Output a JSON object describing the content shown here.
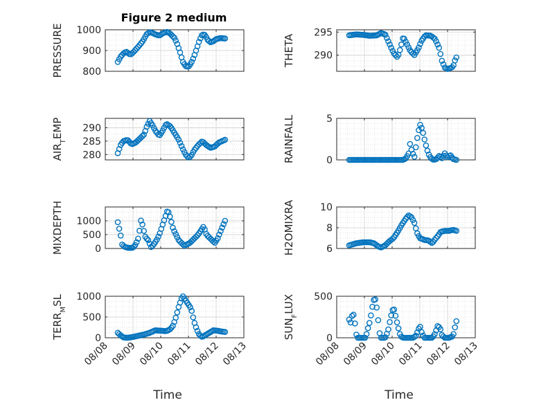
{
  "figure": {
    "title": "Figure 2 medium",
    "marker_color": "#0072BD",
    "grid_color": "#d9d9d9",
    "axis_color": "#262626"
  },
  "chart_data": [
    {
      "type": "scatter",
      "ylabel": "PRESSURE",
      "ylabel_parts": [
        [
          "PRESSURE",
          ""
        ]
      ],
      "xlabel": "",
      "ylim": [
        800,
        1000
      ],
      "yticks": [
        800,
        900,
        1000
      ],
      "xlim": [
        "08/08",
        "08/13"
      ],
      "xticks": [
        "08/08",
        "08/09",
        "08/10",
        "08/11",
        "08/12",
        "08/13"
      ],
      "show_xtick_labels": false,
      "x_start": "08/08",
      "x_end": "08/13",
      "x_first": 0.45,
      "x_last": 4.32,
      "anchors": [
        [
          0.45,
          845
        ],
        [
          0.55,
          870
        ],
        [
          0.65,
          885
        ],
        [
          0.75,
          895
        ],
        [
          0.9,
          880
        ],
        [
          1.0,
          890
        ],
        [
          1.1,
          905
        ],
        [
          1.2,
          920
        ],
        [
          1.35,
          945
        ],
        [
          1.5,
          980
        ],
        [
          1.6,
          988
        ],
        [
          1.7,
          985
        ],
        [
          1.8,
          978
        ],
        [
          1.95,
          972
        ],
        [
          2.1,
          985
        ],
        [
          2.25,
          990
        ],
        [
          2.35,
          980
        ],
        [
          2.5,
          960
        ],
        [
          2.6,
          930
        ],
        [
          2.7,
          890
        ],
        [
          2.8,
          845
        ],
        [
          2.9,
          825
        ],
        [
          3.0,
          822
        ],
        [
          3.1,
          840
        ],
        [
          3.2,
          870
        ],
        [
          3.3,
          910
        ],
        [
          3.4,
          950
        ],
        [
          3.5,
          978
        ],
        [
          3.6,
          975
        ],
        [
          3.7,
          950
        ],
        [
          3.8,
          940
        ],
        [
          3.9,
          945
        ],
        [
          4.0,
          955
        ],
        [
          4.15,
          960
        ],
        [
          4.32,
          958
        ]
      ]
    },
    {
      "type": "scatter",
      "ylabel": "THETA",
      "ylabel_parts": [
        [
          "THETA",
          ""
        ]
      ],
      "xlabel": "",
      "ylim": [
        286.5,
        295.5
      ],
      "yticks": [
        290,
        295
      ],
      "xlim": [
        "08/08",
        "08/13"
      ],
      "xticks": [
        "08/08",
        "08/09",
        "08/10",
        "08/11",
        "08/12",
        "08/13"
      ],
      "show_xtick_labels": false,
      "x_start": "08/08",
      "x_end": "08/13",
      "x_first": 0.45,
      "x_last": 4.32,
      "anchors": [
        [
          0.45,
          294.3
        ],
        [
          0.7,
          294.5
        ],
        [
          0.95,
          294.4
        ],
        [
          1.2,
          294.2
        ],
        [
          1.45,
          294.3
        ],
        [
          1.6,
          294.8
        ],
        [
          1.75,
          294.5
        ],
        [
          1.9,
          292.5
        ],
        [
          2.05,
          290.5
        ],
        [
          2.2,
          289.5
        ],
        [
          2.3,
          291.5
        ],
        [
          2.4,
          294.0
        ],
        [
          2.5,
          292.8
        ],
        [
          2.65,
          291.0
        ],
        [
          2.8,
          290.0
        ],
        [
          2.95,
          291.5
        ],
        [
          3.05,
          293.0
        ],
        [
          3.2,
          294.3
        ],
        [
          3.4,
          294.2
        ],
        [
          3.55,
          293.5
        ],
        [
          3.7,
          291.5
        ],
        [
          3.8,
          288.7
        ],
        [
          3.9,
          287.3
        ],
        [
          4.0,
          287.0
        ],
        [
          4.1,
          287.2
        ],
        [
          4.2,
          287.5
        ],
        [
          4.3,
          289.5
        ]
      ]
    },
    {
      "type": "scatter",
      "ylabel": "AIR_TEMP",
      "ylabel_parts": [
        [
          "AIR",
          ""
        ],
        [
          "T",
          "sub"
        ],
        [
          "EMP",
          ""
        ]
      ],
      "xlabel": "",
      "ylim": [
        278,
        293.5
      ],
      "yticks": [
        280,
        285,
        290
      ],
      "xlim": [
        "08/08",
        "08/13"
      ],
      "xticks": [
        "08/08",
        "08/09",
        "08/10",
        "08/11",
        "08/12",
        "08/13"
      ],
      "show_xtick_labels": false,
      "x_start": "08/08",
      "x_end": "08/13",
      "x_first": 0.45,
      "x_last": 4.32,
      "anchors": [
        [
          0.45,
          280.5
        ],
        [
          0.55,
          283.5
        ],
        [
          0.65,
          285.0
        ],
        [
          0.8,
          285.5
        ],
        [
          0.95,
          283.8
        ],
        [
          1.1,
          284.5
        ],
        [
          1.25,
          286.0
        ],
        [
          1.4,
          287.5
        ],
        [
          1.5,
          290.5
        ],
        [
          1.6,
          292.5
        ],
        [
          1.7,
          291.0
        ],
        [
          1.8,
          289.0
        ],
        [
          1.95,
          287.0
        ],
        [
          2.05,
          288.5
        ],
        [
          2.2,
          291.5
        ],
        [
          2.35,
          290.5
        ],
        [
          2.5,
          288.0
        ],
        [
          2.65,
          285.5
        ],
        [
          2.8,
          282.0
        ],
        [
          2.9,
          280.0
        ],
        [
          3.0,
          278.8
        ],
        [
          3.1,
          279.5
        ],
        [
          3.2,
          281.5
        ],
        [
          3.35,
          283.5
        ],
        [
          3.5,
          285.0
        ],
        [
          3.65,
          283.5
        ],
        [
          3.8,
          282.5
        ],
        [
          3.95,
          283.0
        ],
        [
          4.1,
          284.5
        ],
        [
          4.32,
          285.5
        ]
      ]
    },
    {
      "type": "scatter",
      "ylabel": "RAINFALL",
      "ylabel_parts": [
        [
          "RAINFALL",
          ""
        ]
      ],
      "xlabel": "",
      "ylim": [
        0,
        5
      ],
      "yticks": [
        0,
        5
      ],
      "xlim": [
        "08/08",
        "08/13"
      ],
      "xticks": [
        "08/08",
        "08/09",
        "08/10",
        "08/11",
        "08/12",
        "08/13"
      ],
      "show_xtick_labels": false,
      "x_start": "08/08",
      "x_end": "08/13",
      "x_first": 0.45,
      "x_last": 4.32,
      "anchors": [
        [
          0.45,
          0
        ],
        [
          1.0,
          0
        ],
        [
          1.5,
          0
        ],
        [
          2.0,
          0
        ],
        [
          2.3,
          0
        ],
        [
          2.4,
          0
        ],
        [
          2.5,
          0.2
        ],
        [
          2.6,
          0.8
        ],
        [
          2.65,
          2.0
        ],
        [
          2.7,
          1.2
        ],
        [
          2.8,
          0.3
        ],
        [
          2.9,
          2.5
        ],
        [
          3.0,
          4.3
        ],
        [
          3.05,
          4.0
        ],
        [
          3.1,
          3.5
        ],
        [
          3.2,
          2.0
        ],
        [
          3.3,
          0.8
        ],
        [
          3.4,
          0.2
        ],
        [
          3.5,
          0.0
        ],
        [
          3.6,
          0.1
        ],
        [
          3.7,
          0.5
        ],
        [
          3.8,
          0.2
        ],
        [
          3.9,
          0.8
        ],
        [
          4.0,
          0.3
        ],
        [
          4.1,
          0.6
        ],
        [
          4.2,
          0.1
        ],
        [
          4.32,
          0
        ]
      ]
    },
    {
      "type": "scatter",
      "ylabel": "MIXDEPTH",
      "ylabel_parts": [
        [
          "MIXDEPTH",
          ""
        ]
      ],
      "xlabel": "",
      "ylim": [
        0,
        1500
      ],
      "yticks": [
        0,
        500,
        1000
      ],
      "xlim": [
        "08/08",
        "08/13"
      ],
      "xticks": [
        "08/08",
        "08/09",
        "08/10",
        "08/11",
        "08/12",
        "08/13"
      ],
      "show_xtick_labels": false,
      "x_start": "08/08",
      "x_end": "08/13",
      "x_first": 0.45,
      "x_last": 4.32,
      "anchors": [
        [
          0.45,
          950
        ],
        [
          0.55,
          500
        ],
        [
          0.6,
          150
        ],
        [
          0.7,
          60
        ],
        [
          0.8,
          30
        ],
        [
          0.9,
          20
        ],
        [
          1.0,
          30
        ],
        [
          1.1,
          150
        ],
        [
          1.2,
          400
        ],
        [
          1.3,
          1100
        ],
        [
          1.35,
          800
        ],
        [
          1.45,
          400
        ],
        [
          1.55,
          300
        ],
        [
          1.65,
          50
        ],
        [
          1.75,
          150
        ],
        [
          1.85,
          300
        ],
        [
          1.95,
          500
        ],
        [
          2.05,
          800
        ],
        [
          2.15,
          1100
        ],
        [
          2.25,
          1400
        ],
        [
          2.35,
          1100
        ],
        [
          2.45,
          700
        ],
        [
          2.55,
          500
        ],
        [
          2.65,
          300
        ],
        [
          2.75,
          200
        ],
        [
          2.85,
          100
        ],
        [
          2.95,
          150
        ],
        [
          3.05,
          200
        ],
        [
          3.15,
          300
        ],
        [
          3.25,
          400
        ],
        [
          3.35,
          500
        ],
        [
          3.45,
          650
        ],
        [
          3.55,
          800
        ],
        [
          3.65,
          500
        ],
        [
          3.75,
          400
        ],
        [
          3.85,
          300
        ],
        [
          3.95,
          200
        ],
        [
          4.05,
          350
        ],
        [
          4.15,
          600
        ],
        [
          4.32,
          1000
        ]
      ]
    },
    {
      "type": "scatter",
      "ylabel": "H2OMIXRA",
      "ylabel_parts": [
        [
          "H2OMIXRA",
          ""
        ]
      ],
      "xlabel": "",
      "ylim": [
        6,
        10
      ],
      "yticks": [
        6,
        8,
        10
      ],
      "xlim": [
        "08/08",
        "08/13"
      ],
      "xticks": [
        "08/08",
        "08/09",
        "08/10",
        "08/11",
        "08/12",
        "08/13"
      ],
      "show_xtick_labels": false,
      "x_start": "08/08",
      "x_end": "08/13",
      "x_first": 0.45,
      "x_last": 4.32,
      "anchors": [
        [
          0.45,
          6.3
        ],
        [
          0.7,
          6.5
        ],
        [
          0.95,
          6.6
        ],
        [
          1.2,
          6.6
        ],
        [
          1.35,
          6.5
        ],
        [
          1.5,
          6.2
        ],
        [
          1.6,
          6.1
        ],
        [
          1.75,
          6.3
        ],
        [
          1.9,
          6.7
        ],
        [
          2.05,
          7.0
        ],
        [
          2.2,
          7.6
        ],
        [
          2.35,
          8.3
        ],
        [
          2.5,
          8.9
        ],
        [
          2.6,
          9.2
        ],
        [
          2.7,
          9.0
        ],
        [
          2.8,
          8.5
        ],
        [
          2.9,
          7.5
        ],
        [
          3.0,
          7.0
        ],
        [
          3.1,
          6.9
        ],
        [
          3.2,
          6.8
        ],
        [
          3.3,
          6.8
        ],
        [
          3.45,
          6.5
        ],
        [
          3.55,
          6.9
        ],
        [
          3.65,
          7.2
        ],
        [
          3.75,
          7.6
        ],
        [
          3.9,
          7.7
        ],
        [
          4.05,
          7.7
        ],
        [
          4.2,
          7.8
        ],
        [
          4.32,
          7.7
        ]
      ]
    },
    {
      "type": "scatter",
      "ylabel": "TERR_MSL",
      "ylabel_parts": [
        [
          "TERR",
          ""
        ],
        [
          "M",
          "sub"
        ],
        [
          "SL",
          ""
        ]
      ],
      "xlabel": "Time",
      "ylim": [
        0,
        1000
      ],
      "yticks": [
        0,
        500,
        1000
      ],
      "xlim": [
        "08/08",
        "08/13"
      ],
      "xticks": [
        "08/08",
        "08/09",
        "08/10",
        "08/11",
        "08/12",
        "08/13"
      ],
      "show_xtick_labels": true,
      "x_start": "08/08",
      "x_end": "08/13",
      "x_first": 0.45,
      "x_last": 4.32,
      "anchors": [
        [
          0.45,
          120
        ],
        [
          0.55,
          60
        ],
        [
          0.65,
          10
        ],
        [
          0.8,
          0
        ],
        [
          1.0,
          20
        ],
        [
          1.2,
          50
        ],
        [
          1.4,
          80
        ],
        [
          1.6,
          120
        ],
        [
          1.8,
          180
        ],
        [
          2.0,
          170
        ],
        [
          2.2,
          160
        ],
        [
          2.35,
          210
        ],
        [
          2.45,
          300
        ],
        [
          2.55,
          500
        ],
        [
          2.65,
          750
        ],
        [
          2.75,
          950
        ],
        [
          2.8,
          1000
        ],
        [
          2.9,
          900
        ],
        [
          3.0,
          800
        ],
        [
          3.1,
          700
        ],
        [
          3.2,
          400
        ],
        [
          3.3,
          200
        ],
        [
          3.4,
          60
        ],
        [
          3.5,
          20
        ],
        [
          3.6,
          60
        ],
        [
          3.75,
          120
        ],
        [
          3.9,
          180
        ],
        [
          4.05,
          170
        ],
        [
          4.2,
          150
        ],
        [
          4.32,
          140
        ]
      ]
    },
    {
      "type": "scatter",
      "ylabel": "SUN_FLUX",
      "ylabel_parts": [
        [
          "SUN",
          ""
        ],
        [
          "F",
          "sub"
        ],
        [
          "LUX",
          ""
        ]
      ],
      "xlabel": "Time",
      "ylim": [
        0,
        500
      ],
      "yticks": [
        0,
        500
      ],
      "xlim": [
        "08/08",
        "08/13"
      ],
      "xticks": [
        "08/08",
        "08/09",
        "08/10",
        "08/11",
        "08/12",
        "08/13"
      ],
      "show_xtick_labels": true,
      "x_start": "08/08",
      "x_end": "08/13",
      "x_first": 0.45,
      "x_last": 4.32,
      "anchors": [
        [
          0.45,
          220
        ],
        [
          0.5,
          180
        ],
        [
          0.55,
          260
        ],
        [
          0.6,
          290
        ],
        [
          0.65,
          200
        ],
        [
          0.7,
          50
        ],
        [
          0.75,
          0
        ],
        [
          0.9,
          0
        ],
        [
          1.05,
          0
        ],
        [
          1.1,
          80
        ],
        [
          1.2,
          200
        ],
        [
          1.3,
          400
        ],
        [
          1.35,
          470
        ],
        [
          1.4,
          460
        ],
        [
          1.45,
          350
        ],
        [
          1.5,
          200
        ],
        [
          1.55,
          50
        ],
        [
          1.6,
          0
        ],
        [
          1.75,
          0
        ],
        [
          1.85,
          80
        ],
        [
          1.95,
          250
        ],
        [
          2.05,
          370
        ],
        [
          2.1,
          300
        ],
        [
          2.2,
          150
        ],
        [
          2.3,
          20
        ],
        [
          2.4,
          0
        ],
        [
          2.6,
          0
        ],
        [
          2.75,
          0
        ],
        [
          2.85,
          20
        ],
        [
          2.95,
          100
        ],
        [
          3.0,
          150
        ],
        [
          3.05,
          80
        ],
        [
          3.15,
          0
        ],
        [
          3.3,
          0
        ],
        [
          3.45,
          0
        ],
        [
          3.55,
          50
        ],
        [
          3.65,
          150
        ],
        [
          3.75,
          100
        ],
        [
          3.8,
          30
        ],
        [
          3.9,
          0
        ],
        [
          4.05,
          0
        ],
        [
          4.2,
          20
        ],
        [
          4.25,
          100
        ],
        [
          4.32,
          200
        ]
      ]
    }
  ]
}
